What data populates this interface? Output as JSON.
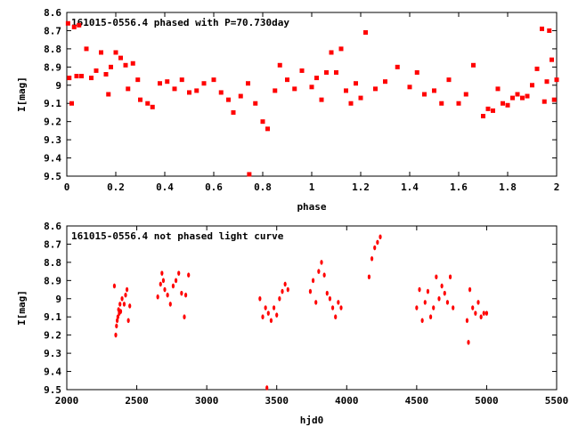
{
  "chart_data": [
    {
      "type": "scatter",
      "title": "161015-0556.4 phased with P=70.730day",
      "xlabel": "phase",
      "ylabel": "I[mag]",
      "xlim": [
        0,
        2
      ],
      "ylim": [
        8.6,
        9.5
      ],
      "y_inverted": true,
      "xticks": [
        "0",
        "0.2",
        "0.4",
        "0.6",
        "0.8",
        "1",
        "1.2",
        "1.4",
        "1.6",
        "1.8",
        "2"
      ],
      "yticks": [
        "8.6",
        "8.7",
        "8.8",
        "8.9",
        "9",
        "9.1",
        "9.2",
        "9.3",
        "9.4",
        "9.5"
      ],
      "grid": false,
      "marker_color": "#ff0000",
      "series": [
        {
          "points": [
            [
              0.005,
              8.66
            ],
            [
              0.01,
              8.96
            ],
            [
              0.02,
              9.1
            ],
            [
              0.03,
              8.68
            ],
            [
              0.04,
              8.95
            ],
            [
              0.05,
              8.67
            ],
            [
              0.06,
              8.95
            ],
            [
              0.08,
              8.8
            ],
            [
              0.1,
              8.96
            ],
            [
              0.12,
              8.92
            ],
            [
              0.14,
              8.82
            ],
            [
              0.16,
              8.94
            ],
            [
              0.17,
              9.05
            ],
            [
              0.18,
              8.9
            ],
            [
              0.2,
              8.82
            ],
            [
              0.22,
              8.85
            ],
            [
              0.24,
              8.89
            ],
            [
              0.25,
              9.02
            ],
            [
              0.27,
              8.88
            ],
            [
              0.29,
              8.97
            ],
            [
              0.3,
              9.08
            ],
            [
              0.33,
              9.1
            ],
            [
              0.35,
              9.12
            ],
            [
              0.38,
              8.99
            ],
            [
              0.41,
              8.98
            ],
            [
              0.44,
              9.02
            ],
            [
              0.47,
              8.97
            ],
            [
              0.5,
              9.04
            ],
            [
              0.53,
              9.03
            ],
            [
              0.56,
              8.99
            ],
            [
              0.6,
              8.97
            ],
            [
              0.63,
              9.04
            ],
            [
              0.66,
              9.08
            ],
            [
              0.68,
              9.15
            ],
            [
              0.71,
              9.06
            ],
            [
              0.74,
              8.99
            ],
            [
              0.745,
              9.49
            ],
            [
              0.77,
              9.1
            ],
            [
              0.8,
              9.2
            ],
            [
              0.82,
              9.24
            ],
            [
              0.85,
              9.03
            ],
            [
              0.87,
              8.89
            ],
            [
              0.9,
              8.97
            ],
            [
              0.93,
              9.02
            ],
            [
              0.96,
              8.92
            ],
            [
              1.0,
              9.01
            ],
            [
              1.02,
              8.96
            ],
            [
              1.04,
              9.08
            ],
            [
              1.06,
              8.93
            ],
            [
              1.08,
              8.82
            ],
            [
              1.1,
              8.93
            ],
            [
              1.12,
              8.8
            ],
            [
              1.14,
              9.03
            ],
            [
              1.16,
              9.1
            ],
            [
              1.18,
              8.99
            ],
            [
              1.2,
              9.07
            ],
            [
              1.22,
              8.71
            ],
            [
              1.26,
              9.02
            ],
            [
              1.3,
              8.98
            ],
            [
              1.35,
              8.9
            ],
            [
              1.4,
              9.01
            ],
            [
              1.43,
              8.93
            ],
            [
              1.46,
              9.05
            ],
            [
              1.5,
              9.03
            ],
            [
              1.53,
              9.1
            ],
            [
              1.56,
              8.97
            ],
            [
              1.6,
              9.1
            ],
            [
              1.63,
              9.05
            ],
            [
              1.66,
              8.89
            ],
            [
              1.7,
              9.17
            ],
            [
              1.72,
              9.13
            ],
            [
              1.74,
              9.14
            ],
            [
              1.76,
              9.02
            ],
            [
              1.78,
              9.1
            ],
            [
              1.8,
              9.11
            ],
            [
              1.82,
              9.07
            ],
            [
              1.84,
              9.05
            ],
            [
              1.86,
              9.07
            ],
            [
              1.88,
              9.06
            ],
            [
              1.9,
              9.0
            ],
            [
              1.92,
              8.91
            ],
            [
              1.94,
              8.69
            ],
            [
              1.95,
              9.09
            ],
            [
              1.96,
              8.98
            ],
            [
              1.97,
              8.7
            ],
            [
              1.98,
              8.86
            ],
            [
              1.99,
              9.08
            ],
            [
              2.0,
              8.97
            ]
          ]
        }
      ]
    },
    {
      "type": "scatter",
      "title": "161015-0556.4 not phased light curve",
      "xlabel": "hjd0",
      "ylabel": "I[mag]",
      "xlim": [
        2000,
        5500
      ],
      "ylim": [
        8.6,
        9.5
      ],
      "y_inverted": true,
      "xticks": [
        "2000",
        "2500",
        "3000",
        "3500",
        "4000",
        "4500",
        "5000",
        "5500"
      ],
      "yticks": [
        "8.6",
        "8.7",
        "8.8",
        "8.9",
        "9",
        "9.1",
        "9.2",
        "9.3",
        "9.4",
        "9.5"
      ],
      "grid": false,
      "marker_color": "#ff0000",
      "series": [
        {
          "points": [
            [
              2340,
              8.93
            ],
            [
              2350,
              9.2
            ],
            [
              2355,
              9.15
            ],
            [
              2360,
              9.12
            ],
            [
              2365,
              9.1
            ],
            [
              2370,
              9.06
            ],
            [
              2375,
              9.08
            ],
            [
              2380,
              9.03
            ],
            [
              2385,
              9.07
            ],
            [
              2395,
              9.0
            ],
            [
              2410,
              9.03
            ],
            [
              2420,
              8.98
            ],
            [
              2430,
              8.95
            ],
            [
              2440,
              9.12
            ],
            [
              2450,
              9.04
            ],
            [
              2650,
              8.99
            ],
            [
              2670,
              8.92
            ],
            [
              2680,
              8.86
            ],
            [
              2690,
              8.9
            ],
            [
              2700,
              8.95
            ],
            [
              2720,
              8.98
            ],
            [
              2740,
              9.03
            ],
            [
              2760,
              8.93
            ],
            [
              2780,
              8.9
            ],
            [
              2800,
              8.86
            ],
            [
              2820,
              8.97
            ],
            [
              2840,
              9.1
            ],
            [
              2850,
              8.98
            ],
            [
              2870,
              8.87
            ],
            [
              3380,
              9.0
            ],
            [
              3400,
              9.1
            ],
            [
              3420,
              9.05
            ],
            [
              3430,
              9.49
            ],
            [
              3440,
              9.08
            ],
            [
              3460,
              9.12
            ],
            [
              3480,
              9.05
            ],
            [
              3500,
              9.09
            ],
            [
              3520,
              9.0
            ],
            [
              3540,
              8.96
            ],
            [
              3560,
              8.92
            ],
            [
              3580,
              8.95
            ],
            [
              3740,
              8.96
            ],
            [
              3760,
              8.9
            ],
            [
              3780,
              9.02
            ],
            [
              3800,
              8.85
            ],
            [
              3820,
              8.8
            ],
            [
              3840,
              8.87
            ],
            [
              3860,
              8.97
            ],
            [
              3880,
              9.0
            ],
            [
              3900,
              9.05
            ],
            [
              3920,
              9.1
            ],
            [
              3940,
              9.02
            ],
            [
              3960,
              9.05
            ],
            [
              4160,
              8.88
            ],
            [
              4180,
              8.78
            ],
            [
              4200,
              8.72
            ],
            [
              4220,
              8.69
            ],
            [
              4240,
              8.66
            ],
            [
              4500,
              9.05
            ],
            [
              4520,
              8.95
            ],
            [
              4540,
              9.12
            ],
            [
              4560,
              9.02
            ],
            [
              4580,
              8.96
            ],
            [
              4600,
              9.1
            ],
            [
              4620,
              9.05
            ],
            [
              4640,
              8.88
            ],
            [
              4660,
              9.0
            ],
            [
              4680,
              8.93
            ],
            [
              4700,
              8.97
            ],
            [
              4720,
              9.02
            ],
            [
              4740,
              8.88
            ],
            [
              4760,
              9.05
            ],
            [
              4860,
              9.12
            ],
            [
              4870,
              9.24
            ],
            [
              4880,
              8.95
            ],
            [
              4900,
              9.05
            ],
            [
              4920,
              9.08
            ],
            [
              4940,
              9.02
            ],
            [
              4960,
              9.1
            ],
            [
              4980,
              9.08
            ],
            [
              5000,
              9.08
            ]
          ]
        }
      ]
    }
  ]
}
